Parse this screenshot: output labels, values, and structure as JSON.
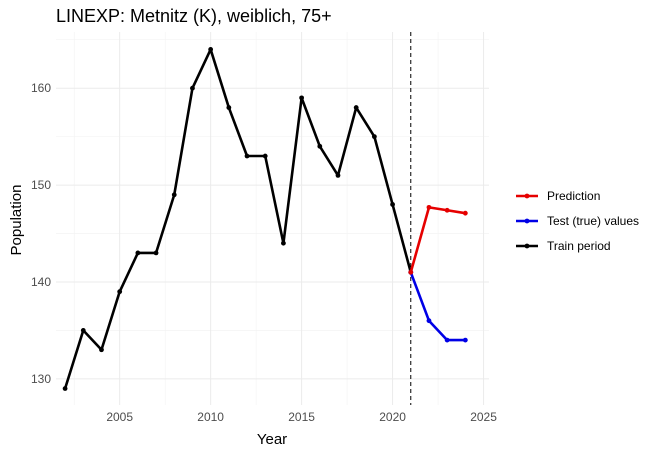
{
  "chart_data": {
    "type": "line",
    "title": "LINEXP: Metnitz (K), weiblich, 75+",
    "xlabel": "Year",
    "ylabel": "Population",
    "xlim": [
      2001.5,
      2025.3
    ],
    "ylim": [
      127.3,
      165.8
    ],
    "x_ticks": [
      2005,
      2010,
      2015,
      2020,
      2025
    ],
    "y_ticks": [
      130,
      140,
      150,
      160
    ],
    "grid": true,
    "legend_position": "right",
    "vline_x": 2021,
    "series": [
      {
        "name": "Train period",
        "color": "#000000",
        "x": [
          2002,
          2003,
          2004,
          2005,
          2006,
          2007,
          2008,
          2009,
          2010,
          2011,
          2012,
          2013,
          2014,
          2015,
          2016,
          2017,
          2018,
          2019,
          2020,
          2021
        ],
        "values": [
          129,
          135,
          133,
          139,
          143,
          143,
          149,
          160,
          164,
          158,
          153,
          153,
          144,
          159,
          154,
          151,
          158,
          155,
          148,
          141
        ]
      },
      {
        "name": "Test (true) values",
        "color": "#0000e6",
        "x": [
          2021,
          2022,
          2023,
          2024
        ],
        "values": [
          141,
          136,
          134,
          134
        ]
      },
      {
        "name": "Prediction",
        "color": "#e60000",
        "x": [
          2021,
          2022,
          2023,
          2024
        ],
        "values": [
          141,
          147.7,
          147.4,
          147.1
        ]
      }
    ],
    "legend_order": [
      "Prediction",
      "Test (true) values",
      "Train period"
    ]
  }
}
